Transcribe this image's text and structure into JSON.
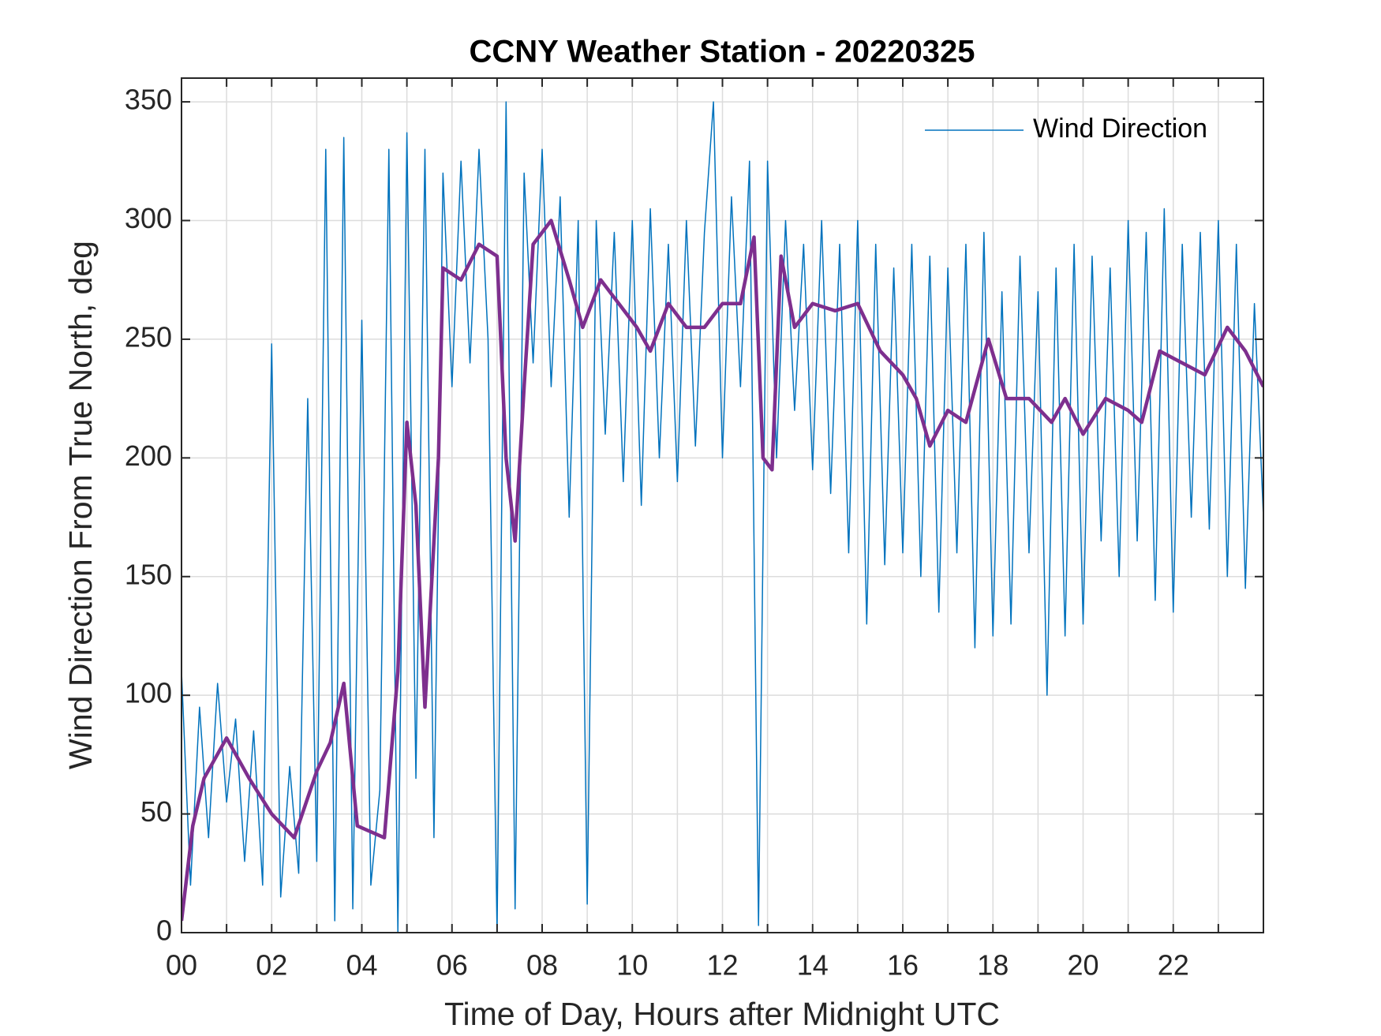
{
  "chart_data": {
    "type": "line",
    "title": "CCNY Weather Station - 20220325",
    "xlabel": "Time of Day, Hours after Midnight UTC",
    "ylabel": "Wind Direction From True North, deg",
    "xlim": [
      0,
      24
    ],
    "ylim": [
      0,
      360
    ],
    "xticks": [
      {
        "value": 0,
        "label": "00"
      },
      {
        "value": 2,
        "label": "02"
      },
      {
        "value": 4,
        "label": "04"
      },
      {
        "value": 6,
        "label": "06"
      },
      {
        "value": 8,
        "label": "08"
      },
      10,
      12,
      14,
      16,
      18,
      20,
      22
    ],
    "xminor_ticks": [
      1,
      3,
      5,
      7,
      9,
      11,
      13,
      15,
      17,
      19,
      21,
      23
    ],
    "yticks": [
      0,
      50,
      100,
      150,
      200,
      250,
      300,
      350
    ],
    "grid": true,
    "legend": "northeast",
    "series": [
      {
        "name": "Wind Direction",
        "color": "#0072bd",
        "width": 1.5,
        "x": [
          0,
          0.2,
          0.4,
          0.6,
          0.8,
          1,
          1.2,
          1.4,
          1.6,
          1.8,
          2,
          2.2,
          2.4,
          2.6,
          2.8,
          3,
          3.2,
          3.4,
          3.6,
          3.8,
          4,
          4.2,
          4.4,
          4.6,
          4.8,
          5,
          5.2,
          5.4,
          5.6,
          5.8,
          6,
          6.2,
          6.4,
          6.6,
          6.8,
          7,
          7.2,
          7.4,
          7.6,
          7.8,
          8,
          8.2,
          8.4,
          8.6,
          8.8,
          9,
          9.2,
          9.4,
          9.6,
          9.8,
          10,
          10.2,
          10.4,
          10.6,
          10.8,
          11,
          11.2,
          11.4,
          11.6,
          11.8,
          12,
          12.2,
          12.4,
          12.6,
          12.8,
          13,
          13.2,
          13.4,
          13.6,
          13.8,
          14,
          14.2,
          14.4,
          14.6,
          14.8,
          15,
          15.2,
          15.4,
          15.6,
          15.8,
          16,
          16.2,
          16.4,
          16.6,
          16.8,
          17,
          17.2,
          17.4,
          17.6,
          17.8,
          18,
          18.2,
          18.4,
          18.6,
          18.8,
          19,
          19.2,
          19.4,
          19.6,
          19.8,
          20,
          20.2,
          20.4,
          20.6,
          20.8,
          21,
          21.2,
          21.4,
          21.6,
          21.8,
          22,
          22.2,
          22.4,
          22.6,
          22.8,
          23,
          23.2,
          23.4,
          23.6,
          23.8,
          24
        ],
        "values": [
          110,
          20,
          95,
          40,
          105,
          55,
          90,
          30,
          85,
          20,
          248,
          15,
          70,
          25,
          225,
          30,
          330,
          5,
          335,
          10,
          258,
          20,
          60,
          330,
          0,
          337,
          65,
          330,
          40,
          320,
          230,
          325,
          240,
          330,
          250,
          0,
          350,
          10,
          320,
          240,
          330,
          230,
          310,
          175,
          300,
          12,
          300,
          210,
          295,
          190,
          300,
          180,
          305,
          200,
          290,
          190,
          300,
          205,
          295,
          350,
          200,
          310,
          230,
          325,
          3,
          325,
          200,
          300,
          220,
          290,
          195,
          300,
          185,
          290,
          160,
          300,
          130,
          290,
          155,
          280,
          160,
          290,
          150,
          285,
          135,
          280,
          160,
          290,
          120,
          295,
          125,
          270,
          130,
          285,
          160,
          270,
          100,
          280,
          125,
          290,
          130,
          285,
          165,
          280,
          150,
          300,
          165,
          295,
          140,
          305,
          135,
          290,
          175,
          295,
          170,
          300,
          150,
          290,
          145,
          265,
          175
        ]
      },
      {
        "color": "#7e2f8e",
        "width": 4.5,
        "x": [
          0,
          0.25,
          0.5,
          1,
          1.5,
          2,
          2.5,
          3,
          3.3,
          3.6,
          3.9,
          4.5,
          4.8,
          5,
          5.2,
          5.4,
          5.7,
          5.8,
          6.2,
          6.6,
          7,
          7.2,
          7.4,
          7.6,
          7.8,
          8.2,
          8.6,
          8.9,
          9.3,
          9.7,
          10.1,
          10.4,
          10.8,
          11.2,
          11.6,
          12,
          12.4,
          12.7,
          12.9,
          13.1,
          13.3,
          13.6,
          14,
          14.5,
          15,
          15.5,
          16,
          16.3,
          16.6,
          17,
          17.4,
          17.9,
          18.3,
          18.8,
          19.3,
          19.6,
          20,
          20.5,
          21,
          21.3,
          21.7,
          22.2,
          22.7,
          23.2,
          23.6,
          24
        ],
        "values": [
          5,
          45,
          65,
          82,
          65,
          50,
          40,
          68,
          80,
          105,
          45,
          40,
          110,
          215,
          180,
          95,
          200,
          280,
          275,
          290,
          285,
          200,
          165,
          230,
          290,
          300,
          275,
          255,
          275,
          265,
          255,
          245,
          265,
          255,
          255,
          265,
          265,
          293,
          200,
          195,
          285,
          255,
          265,
          262,
          265,
          245,
          235,
          225,
          205,
          220,
          215,
          250,
          225,
          225,
          215,
          225,
          210,
          225,
          220,
          215,
          245,
          240,
          235,
          255,
          245,
          230
        ]
      }
    ]
  }
}
